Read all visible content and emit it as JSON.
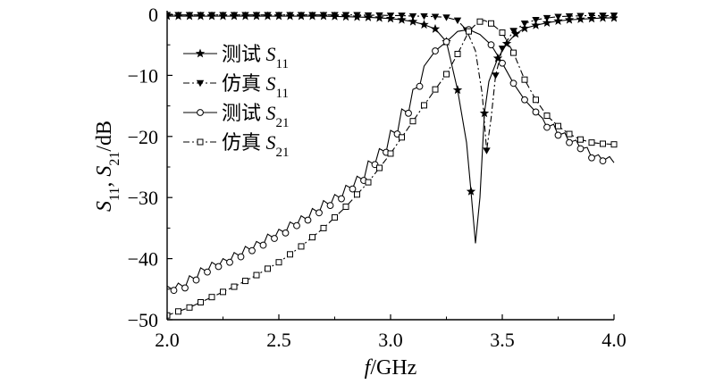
{
  "chart_data": {
    "type": "line",
    "xlabel": "f/GHz",
    "ylabel": "S11, S21/dB",
    "xlim": [
      2.0,
      4.0
    ],
    "ylim": [
      -50,
      0
    ],
    "xticks": [
      "2.0",
      "2.5",
      "3.0",
      "3.5",
      "4.0"
    ],
    "yticks": [
      "0",
      "−10",
      "−20",
      "−30",
      "−40",
      "−50"
    ],
    "grid": false,
    "legend_position": "top-left",
    "series": [
      {
        "name": "测试 S11",
        "label_text": "测试",
        "param": "S",
        "sub": "11",
        "marker": "star",
        "line": "solid",
        "x": [
          2.0,
          2.05,
          2.1,
          2.15,
          2.2,
          2.25,
          2.3,
          2.35,
          2.4,
          2.45,
          2.5,
          2.55,
          2.6,
          2.65,
          2.7,
          2.75,
          2.8,
          2.85,
          2.9,
          2.95,
          3.0,
          3.05,
          3.1,
          3.15,
          3.2,
          3.25,
          3.3,
          3.34,
          3.36,
          3.38,
          3.4,
          3.42,
          3.44,
          3.48,
          3.52,
          3.56,
          3.6,
          3.65,
          3.7,
          3.75,
          3.8,
          3.85,
          3.9,
          3.95,
          4.0
        ],
        "y": [
          -0.3,
          -0.3,
          -0.3,
          -0.3,
          -0.3,
          -0.3,
          -0.3,
          -0.3,
          -0.3,
          -0.3,
          -0.3,
          -0.3,
          -0.3,
          -0.3,
          -0.3,
          -0.35,
          -0.4,
          -0.45,
          -0.5,
          -0.6,
          -0.7,
          -0.9,
          -1.2,
          -1.7,
          -2.4,
          -4.5,
          -12.4,
          -21.0,
          -29.0,
          -37.5,
          -30.0,
          -16.2,
          -11.0,
          -7.2,
          -4.8,
          -3.2,
          -2.3,
          -1.8,
          -1.4,
          -1.1,
          -0.9,
          -0.8,
          -0.7,
          -0.6,
          -0.6
        ],
        "marker_x": [
          2.0,
          2.05,
          2.1,
          2.15,
          2.2,
          2.25,
          2.3,
          2.35,
          2.4,
          2.45,
          2.5,
          2.55,
          2.6,
          2.65,
          2.7,
          2.75,
          2.8,
          2.85,
          2.9,
          2.95,
          3.0,
          3.05,
          3.1,
          3.15,
          3.2,
          3.25,
          3.3,
          3.36,
          3.42,
          3.48,
          3.52,
          3.56,
          3.6,
          3.65,
          3.7,
          3.75,
          3.8,
          3.85,
          3.9,
          3.95,
          4.0
        ]
      },
      {
        "name": "仿真 S11",
        "label_text": "仿真",
        "param": "S",
        "sub": "11",
        "marker": "triangle-down",
        "line": "dashdot",
        "x": [
          2.0,
          2.05,
          2.1,
          2.15,
          2.2,
          2.25,
          2.3,
          2.35,
          2.4,
          2.45,
          2.5,
          2.55,
          2.6,
          2.65,
          2.7,
          2.75,
          2.8,
          2.85,
          2.9,
          2.95,
          3.0,
          3.05,
          3.1,
          3.15,
          3.2,
          3.25,
          3.3,
          3.34,
          3.38,
          3.41,
          3.43,
          3.45,
          3.47,
          3.5,
          3.55,
          3.6,
          3.65,
          3.7,
          3.75,
          3.8,
          3.85,
          3.9,
          3.95,
          4.0
        ],
        "y": [
          -0.1,
          -0.1,
          -0.1,
          -0.1,
          -0.1,
          -0.1,
          -0.1,
          -0.1,
          -0.1,
          -0.1,
          -0.1,
          -0.1,
          -0.1,
          -0.1,
          -0.1,
          -0.1,
          -0.1,
          -0.1,
          -0.15,
          -0.15,
          -0.2,
          -0.2,
          -0.3,
          -0.3,
          -0.4,
          -0.5,
          -1.0,
          -2.6,
          -6.0,
          -13.0,
          -22.3,
          -17.0,
          -10.0,
          -5.6,
          -2.7,
          -1.5,
          -0.9,
          -0.6,
          -0.4,
          -0.3,
          -0.25,
          -0.2,
          -0.2,
          -0.2
        ],
        "marker_x": [
          2.0,
          2.05,
          2.1,
          2.15,
          2.2,
          2.25,
          2.3,
          2.35,
          2.4,
          2.45,
          2.5,
          2.55,
          2.6,
          2.65,
          2.7,
          2.75,
          2.8,
          2.85,
          2.9,
          2.95,
          3.0,
          3.05,
          3.1,
          3.15,
          3.2,
          3.25,
          3.3,
          3.34,
          3.43,
          3.47,
          3.5,
          3.55,
          3.6,
          3.65,
          3.7,
          3.75,
          3.8,
          3.85,
          3.9,
          3.95,
          4.0
        ]
      },
      {
        "name": "测试 S21",
        "label_text": "测试",
        "param": "S",
        "sub": "21",
        "marker": "circle",
        "line": "solid",
        "x": [
          2.0,
          2.03,
          2.05,
          2.08,
          2.1,
          2.13,
          2.15,
          2.18,
          2.2,
          2.23,
          2.25,
          2.28,
          2.3,
          2.33,
          2.35,
          2.38,
          2.4,
          2.43,
          2.45,
          2.48,
          2.5,
          2.53,
          2.55,
          2.58,
          2.6,
          2.63,
          2.65,
          2.68,
          2.7,
          2.73,
          2.75,
          2.78,
          2.8,
          2.83,
          2.85,
          2.88,
          2.9,
          2.93,
          2.95,
          2.98,
          3.0,
          3.03,
          3.05,
          3.08,
          3.1,
          3.13,
          3.15,
          3.2,
          3.25,
          3.3,
          3.35,
          3.4,
          3.45,
          3.5,
          3.55,
          3.6,
          3.65,
          3.68,
          3.7,
          3.73,
          3.75,
          3.78,
          3.8,
          3.83,
          3.85,
          3.88,
          3.9,
          3.93,
          3.95,
          3.98,
          4.0
        ],
        "y": [
          -44.5,
          -45.2,
          -44.0,
          -44.8,
          -42.8,
          -43.5,
          -41.5,
          -42.2,
          -40.6,
          -41.3,
          -40.0,
          -40.6,
          -39.0,
          -39.7,
          -38.0,
          -38.7,
          -37.2,
          -37.8,
          -36.0,
          -36.7,
          -35.2,
          -35.8,
          -34.0,
          -34.6,
          -33.0,
          -33.7,
          -31.8,
          -32.5,
          -30.5,
          -31.3,
          -29.5,
          -30.2,
          -28.0,
          -28.6,
          -26.5,
          -27.2,
          -24.0,
          -24.6,
          -22.0,
          -22.6,
          -19.0,
          -19.6,
          -15.5,
          -16.2,
          -12.3,
          -11.8,
          -8.5,
          -6.0,
          -4.5,
          -2.8,
          -2.5,
          -3.3,
          -5.0,
          -8.0,
          -11.3,
          -14.0,
          -16.0,
          -17.0,
          -18.5,
          -18.0,
          -19.8,
          -19.4,
          -21.0,
          -20.6,
          -22.0,
          -21.8,
          -23.5,
          -23.0,
          -24.0,
          -23.3,
          -24.3
        ],
        "marker_x": [
          2.03,
          2.08,
          2.13,
          2.18,
          2.23,
          2.28,
          2.33,
          2.38,
          2.43,
          2.48,
          2.53,
          2.58,
          2.63,
          2.68,
          2.73,
          2.78,
          2.83,
          2.88,
          2.93,
          2.98,
          3.03,
          3.08,
          3.13,
          3.2,
          3.25,
          3.35,
          3.45,
          3.5,
          3.55,
          3.6,
          3.65,
          3.7,
          3.75,
          3.8,
          3.85,
          3.9,
          3.95
        ]
      },
      {
        "name": "仿真 S21",
        "label_text": "仿真",
        "param": "S",
        "sub": "21",
        "marker": "square",
        "line": "dashdot",
        "x": [
          2.0,
          2.1,
          2.2,
          2.3,
          2.4,
          2.5,
          2.6,
          2.7,
          2.8,
          2.9,
          3.0,
          3.1,
          3.2,
          3.25,
          3.3,
          3.35,
          3.38,
          3.4,
          3.42,
          3.45,
          3.5,
          3.55,
          3.6,
          3.65,
          3.7,
          3.75,
          3.8,
          3.85,
          3.9,
          3.95,
          4.0
        ],
        "y": [
          -49.3,
          -48.0,
          -46.3,
          -44.6,
          -42.7,
          -40.6,
          -38.0,
          -35.0,
          -31.5,
          -27.5,
          -22.8,
          -17.5,
          -12.3,
          -9.8,
          -6.5,
          -2.8,
          -1.7,
          -1.2,
          -1.0,
          -1.5,
          -3.0,
          -6.3,
          -10.7,
          -14.0,
          -16.6,
          -18.3,
          -19.6,
          -20.5,
          -21.0,
          -21.2,
          -21.3
        ],
        "marker_x": [
          2.0,
          2.05,
          2.1,
          2.15,
          2.2,
          2.25,
          2.3,
          2.35,
          2.4,
          2.45,
          2.5,
          2.55,
          2.6,
          2.65,
          2.7,
          2.75,
          2.8,
          2.85,
          2.9,
          2.95,
          3.0,
          3.05,
          3.1,
          3.15,
          3.2,
          3.25,
          3.3,
          3.35,
          3.4,
          3.45,
          3.5,
          3.55,
          3.6,
          3.65,
          3.7,
          3.75,
          3.8,
          3.85,
          3.9,
          3.95,
          4.0
        ]
      }
    ]
  }
}
